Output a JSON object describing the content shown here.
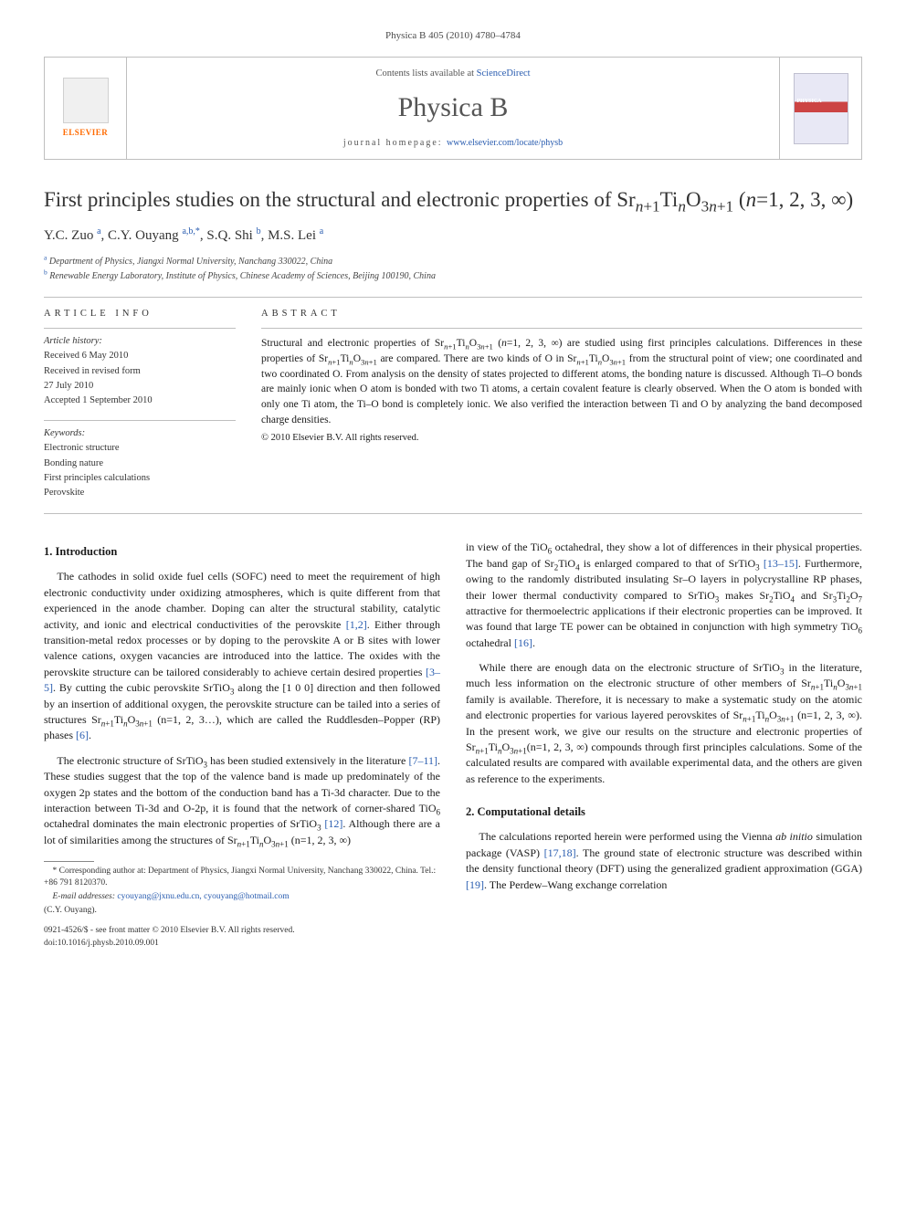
{
  "journal_ref": "Physica B 405 (2010) 4780–4784",
  "header": {
    "publisher": "ELSEVIER",
    "contents_prefix": "Contents lists available at ",
    "contents_link": "ScienceDirect",
    "journal_name": "Physica B",
    "homepage_prefix": "journal homepage: ",
    "homepage_url": "www.elsevier.com/locate/physb"
  },
  "title_html": "First principles studies on the structural and electronic properties of Sr<sub><i>n</i>+1</sub>Ti<sub><i>n</i></sub>O<sub>3<i>n</i>+1</sub> (<i>n</i>=1, 2, 3, ∞)",
  "authors_html": "Y.C. Zuo <sup>a</sup>, C.Y. Ouyang <sup>a,b,*</sup>, S.Q. Shi <sup>b</sup>, M.S. Lei <sup>a</sup>",
  "affiliations": [
    {
      "sup": "a",
      "text": "Department of Physics, Jiangxi Normal University, Nanchang 330022, China"
    },
    {
      "sup": "b",
      "text": "Renewable Energy Laboratory, Institute of Physics, Chinese Academy of Sciences, Beijing 100190, China"
    }
  ],
  "article_info": {
    "heading": "ARTICLE INFO",
    "history_label": "Article history:",
    "history": [
      "Received 6 May 2010",
      "Received in revised form",
      "27 July 2010",
      "Accepted 1 September 2010"
    ],
    "keywords_label": "Keywords:",
    "keywords": [
      "Electronic structure",
      "Bonding nature",
      "First principles calculations",
      "Perovskite"
    ]
  },
  "abstract": {
    "heading": "ABSTRACT",
    "body_html": "Structural and electronic properties of Sr<sub><i>n</i>+1</sub>Ti<sub><i>n</i></sub>O<sub>3<i>n</i>+1</sub> (<i>n</i>=1, 2, 3, ∞) are studied using first principles calculations. Differences in these properties of Sr<sub><i>n</i>+1</sub>Ti<sub><i>n</i></sub>O<sub>3<i>n</i>+1</sub> are compared. There are two kinds of O in Sr<sub><i>n</i>+1</sub>Ti<sub><i>n</i></sub>O<sub>3<i>n</i>+1</sub> from the structural point of view; one coordinated and two coordinated O. From analysis on the density of states projected to different atoms, the bonding nature is discussed. Although Ti–O bonds are mainly ionic when O atom is bonded with two Ti atoms, a certain covalent feature is clearly observed. When the O atom is bonded with only one Ti atom, the Ti–O bond is completely ionic. We also verified the interaction between Ti and O by analyzing the band decomposed charge densities.",
    "copyright": "© 2010 Elsevier B.V. All rights reserved."
  },
  "sections": {
    "intro_heading": "1.  Introduction",
    "intro_p1_html": "The cathodes in solid oxide fuel cells (SOFC) need to meet the requirement of high electronic conductivity under oxidizing atmospheres, which is quite different from that experienced in the anode chamber. Doping can alter the structural stability, catalytic activity, and ionic and electrical conductivities of the perovskite <span class=\"ref\">[1,2]</span>. Either through transition-metal redox processes or by doping to the perovskite A or B sites with lower valence cations, oxygen vacancies are introduced into the lattice. The oxides with the perovskite structure can be tailored considerably to achieve certain desired properties <span class=\"ref\">[3–5]</span>. By cutting the cubic perovskite SrTiO<sub>3</sub> along the [1 0 0] direction and then followed by an insertion of additional oxygen, the perovskite structure can be tailed into a series of structures Sr<sub><i>n</i>+1</sub>Ti<sub><i>n</i></sub>O<sub>3<i>n</i>+1</sub> (n=1, 2, 3…), which are called the Ruddlesden–Popper (RP) phases <span class=\"ref\">[6]</span>.",
    "intro_p2_html": "The electronic structure of SrTiO<sub>3</sub> has been studied extensively in the literature <span class=\"ref\">[7–11]</span>. These studies suggest that the top of the valence band is made up predominately of the oxygen 2p states and the bottom of the conduction band has a Ti-3d character. Due to the interaction between Ti-3d and O-2p, it is found that the network of corner-shared TiO<sub>6</sub> octahedral dominates the main electronic properties of SrTiO<sub>3</sub> <span class=\"ref\">[12]</span>. Although there are a lot of similarities among the structures of Sr<sub><i>n</i>+1</sub>Ti<sub><i>n</i></sub>O<sub>3<i>n</i>+1</sub> (n=1, 2, 3, ∞)",
    "intro_p3_html": "in view of the TiO<sub>6</sub> octahedral, they show a lot of differences in their physical properties. The band gap of Sr<sub>2</sub>TiO<sub>4</sub> is enlarged compared to that of SrTiO<sub>3</sub> <span class=\"ref\">[13–15]</span>. Furthermore, owing to the randomly distributed insulating Sr–O layers in polycrystalline RP phases, their lower thermal conductivity compared to SrTiO<sub>3</sub> makes Sr<sub>2</sub>TiO<sub>4</sub> and Sr<sub>3</sub>Ti<sub>2</sub>O<sub>7</sub> attractive for thermoelectric applications if their electronic properties can be improved. It was found that large TE power can be obtained in conjunction with high symmetry TiO<sub>6</sub> octahedral <span class=\"ref\">[16]</span>.",
    "intro_p4_html": "While there are enough data on the electronic structure of SrTiO<sub>3</sub> in the literature, much less information on the electronic structure of other members of Sr<sub><i>n</i>+1</sub>Ti<sub><i>n</i></sub>O<sub>3<i>n</i>+1</sub> family is available. Therefore, it is necessary to make a systematic study on the atomic and electronic properties for various layered perovskites of Sr<sub><i>n</i>+1</sub>Ti<sub><i>n</i></sub>O<sub>3<i>n</i>+1</sub> (n=1, 2, 3, ∞). In the present work, we give our results on the structure and electronic properties of Sr<sub><i>n</i>+1</sub>Ti<sub><i>n</i></sub>O<sub>3<i>n</i>+1</sub>(n=1, 2, 3, ∞) compounds through first principles calculations. Some of the calculated results are compared with available experimental data, and the others are given as reference to the experiments.",
    "comp_heading": "2.  Computational details",
    "comp_p1_html": "The calculations reported herein were performed using the Vienna <i>ab initio</i> simulation package (VASP) <span class=\"ref\">[17,18]</span>. The ground state of electronic structure was described within the density functional theory (DFT) using the generalized gradient approximation (GGA) <span class=\"ref\">[19]</span>. The Perdew–Wang exchange correlation"
  },
  "footnotes": {
    "corresponding": "* Corresponding author at: Department of Physics, Jiangxi Normal University, Nanchang 330022, China. Tel.: +86 791 8120370.",
    "email_label": "E-mail addresses:",
    "emails": "cyouyang@jxnu.edu.cn, cyouyang@hotmail.com",
    "email_person": "(C.Y. Ouyang)."
  },
  "footer": {
    "issn": "0921-4526/$ - see front matter © 2010 Elsevier B.V. All rights reserved.",
    "doi": "doi:10.1016/j.physb.2010.09.001"
  },
  "colors": {
    "link": "#2a5db0",
    "publisher": "#ff6a00",
    "border": "#bfbfbf",
    "text": "#1a1a1a"
  }
}
